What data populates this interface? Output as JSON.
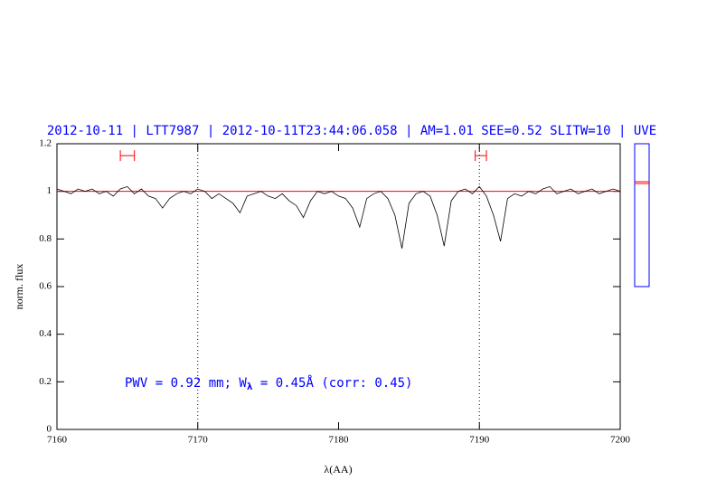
{
  "chart_data": {
    "type": "line",
    "title": "2012-10-11 | LTT7987 | 2012-10-11T23:44:06.058 | AM=1.01 SEE=0.52 SLITW=10 | UVE",
    "x_label": "λ(AA)",
    "y_label": "norm. flux",
    "annotation": [
      "PWV = 0.92 mm; W",
      "λ",
      " = 0.45Å  (corr: 0.45)"
    ],
    "x": [
      7160,
      7160.5,
      7161,
      7161.5,
      7162,
      7162.5,
      7163,
      7163.5,
      7164,
      7164.5,
      7165,
      7165.5,
      7166,
      7166.5,
      7167,
      7167.5,
      7168,
      7168.5,
      7169,
      7169.5,
      7170,
      7170.5,
      7171,
      7171.5,
      7172,
      7172.5,
      7173,
      7173.5,
      7174,
      7174.5,
      7175,
      7175.5,
      7176,
      7176.5,
      7177,
      7177.5,
      7178,
      7178.5,
      7179,
      7179.5,
      7180,
      7180.5,
      7181,
      7181.5,
      7182,
      7182.5,
      7183,
      7183.5,
      7184,
      7184.5,
      7185,
      7185.5,
      7186,
      7186.5,
      7187,
      7187.5,
      7188,
      7188.5,
      7189,
      7189.5,
      7190,
      7190.5,
      7191,
      7191.5,
      7192,
      7192.5,
      7193,
      7193.5,
      7194,
      7194.5,
      7195,
      7195.5,
      7196,
      7196.5,
      7197,
      7197.5,
      7198,
      7198.5,
      7199,
      7199.5,
      7200
    ],
    "series": [
      {
        "color": "#000000",
        "values": [
          1.01,
          1.0,
          0.99,
          1.01,
          1.0,
          1.01,
          0.99,
          1.0,
          0.98,
          1.01,
          1.02,
          0.99,
          1.01,
          0.98,
          0.97,
          0.93,
          0.97,
          0.99,
          1.0,
          0.99,
          1.01,
          1.0,
          0.97,
          0.99,
          0.97,
          0.95,
          0.91,
          0.98,
          0.99,
          1.0,
          0.98,
          0.97,
          0.99,
          0.96,
          0.94,
          0.89,
          0.96,
          1.0,
          0.99,
          1.0,
          0.98,
          0.97,
          0.93,
          0.85,
          0.97,
          0.99,
          1.0,
          0.97,
          0.9,
          0.76,
          0.95,
          0.99,
          1.0,
          0.98,
          0.9,
          0.77,
          0.96,
          1.0,
          1.01,
          0.99,
          1.02,
          0.98,
          0.9,
          0.79,
          0.97,
          0.99,
          0.98,
          1.0,
          0.99,
          1.01,
          1.02,
          0.99,
          1.0,
          1.01,
          0.99,
          1.0,
          1.01,
          0.99,
          1.0,
          1.01,
          1.0
        ]
      }
    ],
    "continuum": {
      "color": "#ff0000",
      "x": [
        7160,
        7200
      ],
      "values": [
        1.0,
        1.0
      ]
    },
    "windows": [
      {
        "x": [
          7164.5,
          7165.5
        ],
        "y": 1.15,
        "color": "#ff0000"
      },
      {
        "x": [
          7189.7,
          7190.5
        ],
        "y": 1.15,
        "color": "#ff0000"
      }
    ],
    "vlines": [
      7170,
      7190
    ],
    "xlim": [
      7160,
      7200
    ],
    "xticks": [
      7160,
      7170,
      7180,
      7190,
      7200
    ],
    "ylim": [
      0,
      1.2
    ],
    "yticks": [
      0,
      0.2,
      0.4,
      0.6,
      0.8,
      1,
      1.2
    ]
  }
}
